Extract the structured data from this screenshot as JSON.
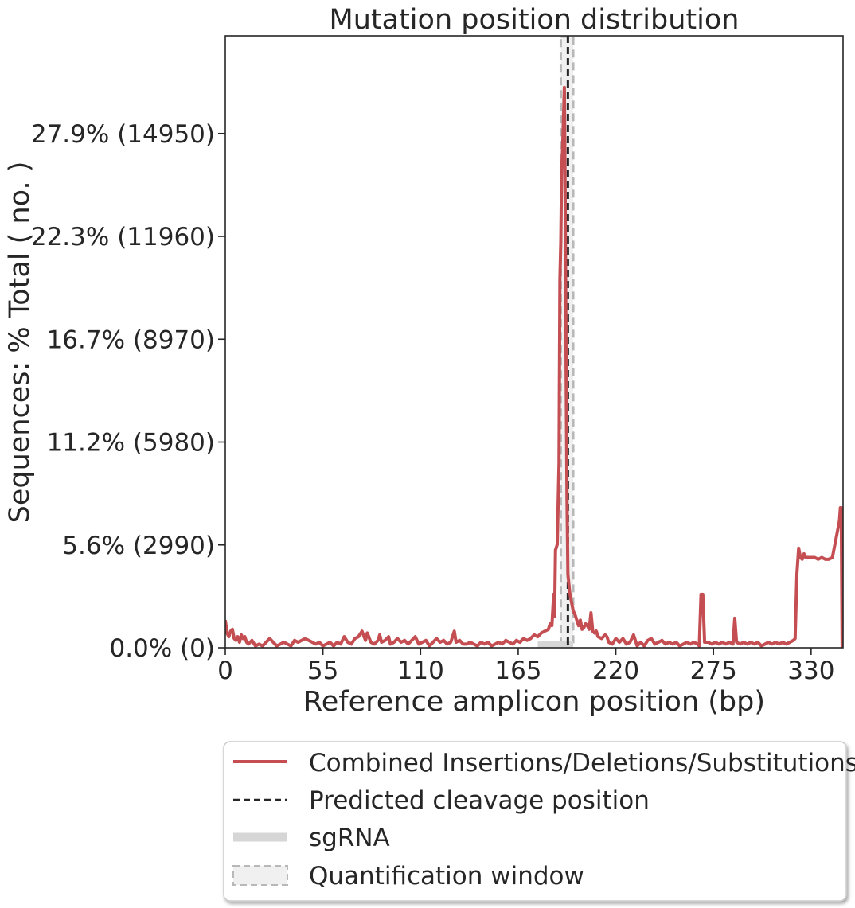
{
  "chart_data": {
    "type": "line",
    "title": "Mutation position distribution",
    "xlabel": "Reference amplicon position (bp)",
    "ylabel": "Sequences: % Total ( no. )",
    "xlim": [
      0,
      348
    ],
    "ylim": [
      0,
      33.2
    ],
    "x_ticks": [
      0,
      55,
      110,
      165,
      220,
      275,
      330
    ],
    "x_tick_labels": [
      "0",
      "55",
      "110",
      "165",
      "220",
      "275",
      "330"
    ],
    "y_ticks": [
      0,
      5.58,
      11.16,
      16.74,
      22.32,
      27.9
    ],
    "y_tick_labels": [
      "0.0% (0)",
      "5.6% (2990)",
      "11.2% (5980)",
      "16.7% (8970)",
      "22.3% (11960)",
      "27.9% (14950)"
    ],
    "grid": false,
    "legend_position": "below",
    "series": [
      {
        "name": "Combined Insertions/Deletions/Substitutions",
        "color": "#c44e52",
        "points": [
          [
            0,
            1.5
          ],
          [
            1,
            0.8
          ],
          [
            2,
            0.6
          ],
          [
            3,
            0.9
          ],
          [
            4,
            1.0
          ],
          [
            5,
            0.5
          ],
          [
            6,
            0.4
          ],
          [
            7,
            0.6
          ],
          [
            8,
            0.3
          ],
          [
            9,
            0.7
          ],
          [
            10,
            0.5
          ],
          [
            11,
            0.6
          ],
          [
            12,
            0.3
          ],
          [
            13,
            0.2
          ],
          [
            15,
            0.4
          ],
          [
            17,
            0.1
          ],
          [
            19,
            0.2
          ],
          [
            21,
            0.1
          ],
          [
            23,
            0.3
          ],
          [
            25,
            0.5
          ],
          [
            27,
            0.3
          ],
          [
            29,
            0.1
          ],
          [
            31,
            0.2
          ],
          [
            33,
            0.3
          ],
          [
            35,
            0.2
          ],
          [
            37,
            0.1
          ],
          [
            39,
            0.4
          ],
          [
            41,
            0.3
          ],
          [
            43,
            0.4
          ],
          [
            45,
            0.5
          ],
          [
            47,
            0.4
          ],
          [
            49,
            0.3
          ],
          [
            51,
            0.2
          ],
          [
            53,
            0.3
          ],
          [
            55,
            0.1
          ],
          [
            57,
            0.2
          ],
          [
            59,
            0.3
          ],
          [
            61,
            0.1
          ],
          [
            63,
            0.3
          ],
          [
            65,
            0.2
          ],
          [
            67,
            0.6
          ],
          [
            69,
            0.3
          ],
          [
            71,
            0.2
          ],
          [
            73,
            0.5
          ],
          [
            75,
            0.6
          ],
          [
            77,
            0.9
          ],
          [
            79,
            0.4
          ],
          [
            80,
            0.8
          ],
          [
            82,
            0.3
          ],
          [
            84,
            0.2
          ],
          [
            86,
            0.4
          ],
          [
            87,
            0.7
          ],
          [
            88,
            0.3
          ],
          [
            90,
            0.4
          ],
          [
            92,
            0.6
          ],
          [
            93,
            0.2
          ],
          [
            95,
            0.3
          ],
          [
            97,
            0.5
          ],
          [
            99,
            0.3
          ],
          [
            101,
            0.4
          ],
          [
            103,
            0.2
          ],
          [
            105,
            0.4
          ],
          [
            107,
            0.6
          ],
          [
            109,
            0.2
          ],
          [
            111,
            0.3
          ],
          [
            113,
            0.4
          ],
          [
            115,
            0.1
          ],
          [
            117,
            0.3
          ],
          [
            119,
            0.5
          ],
          [
            121,
            0.3
          ],
          [
            123,
            0.4
          ],
          [
            125,
            0.2
          ],
          [
            127,
            0.3
          ],
          [
            129,
            0.9
          ],
          [
            130,
            0.3
          ],
          [
            132,
            0.4
          ],
          [
            134,
            0.2
          ],
          [
            136,
            0.2
          ],
          [
            138,
            0.3
          ],
          [
            140,
            0.2
          ],
          [
            142,
            0.1
          ],
          [
            144,
            0.3
          ],
          [
            146,
            0.2
          ],
          [
            148,
            0.3
          ],
          [
            150,
            0.1
          ],
          [
            152,
            0.2
          ],
          [
            154,
            0.3
          ],
          [
            156,
            0.2
          ],
          [
            158,
            0.4
          ],
          [
            160,
            0.3
          ],
          [
            162,
            0.2
          ],
          [
            164,
            0.4
          ],
          [
            166,
            0.3
          ],
          [
            168,
            0.5
          ],
          [
            170,
            0.4
          ],
          [
            172,
            0.5
          ],
          [
            174,
            0.7
          ],
          [
            176,
            0.6
          ],
          [
            178,
            0.8
          ],
          [
            180,
            0.9
          ],
          [
            182,
            1.0
          ],
          [
            183,
            1.3
          ],
          [
            184,
            1.2
          ],
          [
            185,
            2.9
          ],
          [
            185.5,
            1.7
          ],
          [
            186,
            5.3
          ],
          [
            187,
            5.6
          ],
          [
            188,
            10.0
          ],
          [
            188.5,
            20.0
          ],
          [
            189,
            22.0
          ],
          [
            189.5,
            26.0
          ],
          [
            190,
            27.0
          ],
          [
            191,
            30.4
          ],
          [
            191.5,
            24.0
          ],
          [
            192,
            15.0
          ],
          [
            192.5,
            8.0
          ],
          [
            193,
            4.0
          ],
          [
            194,
            3.0
          ],
          [
            195,
            2.5
          ],
          [
            196,
            2.0
          ],
          [
            197,
            1.8
          ],
          [
            198,
            1.5
          ],
          [
            199,
            1.2
          ],
          [
            200,
            1.5
          ],
          [
            201,
            1.0
          ],
          [
            202,
            1.1
          ],
          [
            203,
            1.3
          ],
          [
            204,
            1.2
          ],
          [
            205,
            1.0
          ],
          [
            206,
            1.9
          ],
          [
            207,
            0.9
          ],
          [
            208,
            0.8
          ],
          [
            209,
            0.9
          ],
          [
            210,
            0.6
          ],
          [
            212,
            0.5
          ],
          [
            214,
            0.7
          ],
          [
            215,
            0.6
          ],
          [
            216,
            0.3
          ],
          [
            218,
            0.2
          ],
          [
            220,
            0.5
          ],
          [
            222,
            0.3
          ],
          [
            224,
            0.5
          ],
          [
            226,
            0.2
          ],
          [
            228,
            0.3
          ],
          [
            230,
            0.7
          ],
          [
            232,
            0.1
          ],
          [
            234,
            0.3
          ],
          [
            236,
            0.1
          ],
          [
            238,
            0.4
          ],
          [
            240,
            0.5
          ],
          [
            242,
            0.2
          ],
          [
            244,
            0.3
          ],
          [
            246,
            0.4
          ],
          [
            248,
            0.2
          ],
          [
            250,
            0.3
          ],
          [
            252,
            0.2
          ],
          [
            254,
            0.3
          ],
          [
            256,
            0.1
          ],
          [
            258,
            0.2
          ],
          [
            260,
            0.3
          ],
          [
            262,
            0.2
          ],
          [
            264,
            0.3
          ],
          [
            266,
            0.2
          ],
          [
            267,
            0.1
          ],
          [
            268,
            2.9
          ],
          [
            269,
            2.9
          ],
          [
            270,
            0.3
          ],
          [
            272,
            0.3
          ],
          [
            274,
            0.2
          ],
          [
            276,
            0.3
          ],
          [
            278,
            0.2
          ],
          [
            280,
            0.3
          ],
          [
            282,
            0.2
          ],
          [
            284,
            0.3
          ],
          [
            286,
            0.2
          ],
          [
            287,
            1.6
          ],
          [
            288,
            0.3
          ],
          [
            290,
            0.2
          ],
          [
            292,
            0.3
          ],
          [
            294,
            0.2
          ],
          [
            296,
            0.3
          ],
          [
            298,
            0.2
          ],
          [
            300,
            0.3
          ],
          [
            302,
            0.1
          ],
          [
            304,
            0.2
          ],
          [
            306,
            0.3
          ],
          [
            308,
            0.2
          ],
          [
            310,
            0.3
          ],
          [
            312,
            0.2
          ],
          [
            314,
            0.3
          ],
          [
            316,
            0.2
          ],
          [
            318,
            0.3
          ],
          [
            320,
            0.4
          ],
          [
            321,
            0.5
          ],
          [
            322,
            4.0
          ],
          [
            323,
            5.4
          ],
          [
            324,
            4.9
          ],
          [
            325,
            4.8
          ],
          [
            326,
            5.1
          ],
          [
            327,
            4.9
          ],
          [
            328,
            4.9
          ],
          [
            330,
            4.9
          ],
          [
            332,
            4.9
          ],
          [
            334,
            4.8
          ],
          [
            336,
            4.9
          ],
          [
            338,
            4.8
          ],
          [
            340,
            4.8
          ],
          [
            342,
            4.9
          ],
          [
            343,
            5.4
          ],
          [
            344,
            5.9
          ],
          [
            345,
            6.4
          ],
          [
            346,
            6.9
          ],
          [
            346.5,
            7.6
          ],
          [
            347,
            7.6
          ],
          [
            347.5,
            0.0
          ]
        ]
      }
    ],
    "cleavage_position": 193,
    "sgrna": [
      176,
      196
    ],
    "quantification_window": [
      189,
      196
    ],
    "legend": {
      "series_label": "Combined Insertions/Deletions/Substitutions",
      "cleavage_label": "Predicted cleavage position",
      "sgrna_label": "sgRNA",
      "window_label": "Quantification window"
    },
    "colors": {
      "line": "#c44e52",
      "cleavage": "#262626",
      "sgrna": "#d6d6d6",
      "window_edge": "#b8b8b8",
      "window_fill": "#f0f0f0",
      "axes": "#262626"
    }
  }
}
